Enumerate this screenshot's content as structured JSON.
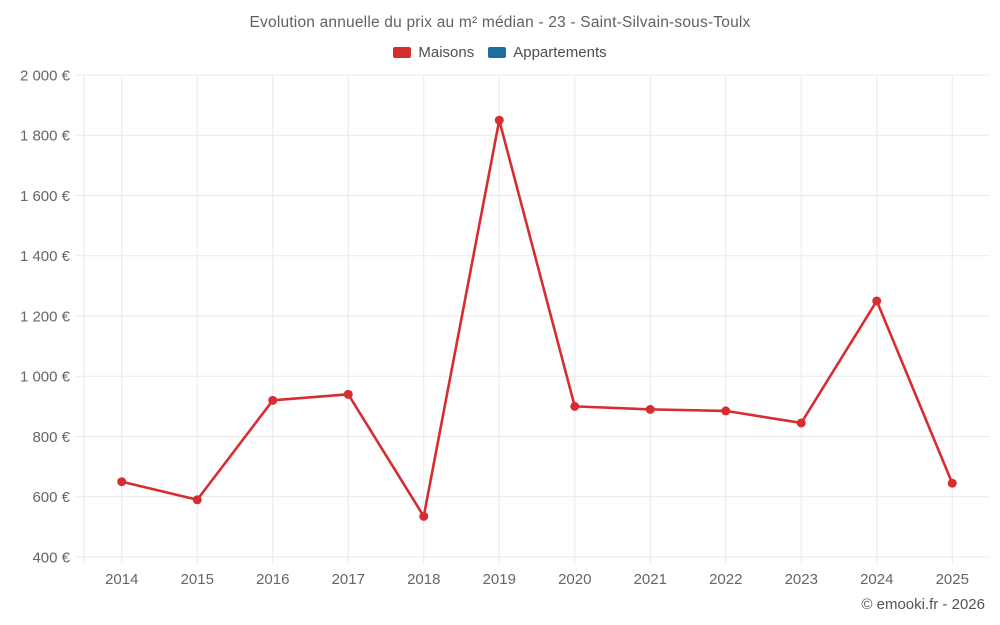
{
  "chart_data": {
    "type": "line",
    "title": "Evolution annuelle du prix au m² médian - 23 - Saint-Silvain-sous-Toulx",
    "categories": [
      "2014",
      "2015",
      "2016",
      "2017",
      "2018",
      "2019",
      "2020",
      "2021",
      "2022",
      "2023",
      "2024",
      "2025"
    ],
    "series": [
      {
        "name": "Maisons",
        "color": "#d62d30",
        "values": [
          650,
          590,
          920,
          940,
          535,
          1850,
          900,
          890,
          885,
          845,
          1250,
          645
        ]
      },
      {
        "name": "Appartements",
        "color": "#1c6e9e",
        "values": []
      }
    ],
    "xlabel": "",
    "ylabel": "",
    "ylim": [
      400,
      2000
    ],
    "ytick_step": 200,
    "ytick_labels": [
      "400 €",
      "600 €",
      "800 €",
      "1 000 €",
      "1 200 €",
      "1 400 €",
      "1 600 €",
      "1 800 €",
      "2 000 €"
    ],
    "grid": true,
    "legend_position": "top",
    "grid_color": "#e9e9e9",
    "tick_label_color": "#666666"
  },
  "footer": {
    "copyright": "© emooki.fr - 2026"
  }
}
